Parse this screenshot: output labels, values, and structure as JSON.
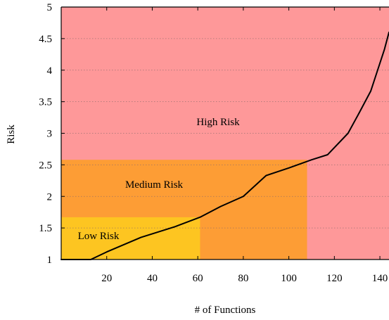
{
  "chart_data": {
    "type": "line",
    "xlabel": "# of Functions",
    "ylabel": "Risk",
    "xlim": [
      0,
      144
    ],
    "ylim": [
      1,
      5
    ],
    "x_ticks": [
      20,
      40,
      60,
      80,
      100,
      120,
      140
    ],
    "y_ticks": [
      1,
      1.5,
      2,
      2.5,
      3,
      3.5,
      4,
      4.5,
      5
    ],
    "grid": "horizontal dotted",
    "regions": [
      {
        "label": "High Risk",
        "x": [
          0,
          144
        ],
        "y": [
          1,
          5
        ],
        "color": "#fe9899"
      },
      {
        "label": "Medium Risk",
        "x": [
          0,
          108
        ],
        "y": [
          1,
          2.58
        ],
        "color": "#fd9d35"
      },
      {
        "label": "Low Risk",
        "x": [
          0,
          61
        ],
        "y": [
          1,
          1.67
        ],
        "color": "#fdc521"
      }
    ],
    "series": [
      {
        "color": "#000000",
        "x": [
          0,
          13,
          20,
          35,
          50,
          61,
          70,
          80,
          90,
          100,
          110,
          117,
          126,
          131,
          136,
          139,
          142,
          144
        ],
        "y": [
          1.0,
          1.0,
          1.12,
          1.35,
          1.52,
          1.67,
          1.84,
          2.0,
          2.33,
          2.45,
          2.58,
          2.66,
          3.0,
          3.33,
          3.67,
          4.0,
          4.33,
          4.6
        ]
      }
    ]
  }
}
